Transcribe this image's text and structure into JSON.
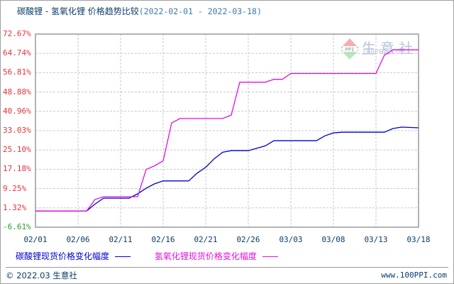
{
  "title": {
    "main": "碳酸锂 - 氢氧化锂 价格趋势比较",
    "range": "(2022-02-01 - 2022-03-18)"
  },
  "watermark": {
    "cn": "生意社",
    "en": "100PPI.COM",
    "logo": "PPI"
  },
  "legend": {
    "series1": "碳酸锂现货价格变化幅度",
    "series2": "氢氧化锂现货价格变化幅度"
  },
  "footer": {
    "left": "© 2022.03 生意社",
    "right": "www.100PPI.com"
  },
  "colors": {
    "series1": "#0000cc",
    "series2": "#e010e0",
    "ytick": "#e8323a",
    "ytick_neg": "#2aa02a",
    "grid": "#c8c8c8"
  },
  "chart_data": {
    "type": "line",
    "title": "碳酸锂 - 氢氧化锂 价格趋势比较(2022-02-01 - 2022-03-18)",
    "xlabel": "",
    "ylabel": "",
    "ylim": [
      -6.61,
      72.67
    ],
    "yticks": [
      "72.67%",
      "64.74%",
      "56.81%",
      "48.88%",
      "40.96%",
      "33.03%",
      "25.10%",
      "17.18%",
      "9.25%",
      "1.32%",
      "-6.61%"
    ],
    "xticks": [
      "02/01",
      "02/06",
      "02/11",
      "02/16",
      "02/21",
      "02/26",
      "03/03",
      "03/08",
      "03/13",
      "03/18"
    ],
    "grid": true,
    "legend_position": "bottom",
    "series": [
      {
        "name": "碳酸锂现货价格变化幅度",
        "color": "#0000cc",
        "x": [
          "02/01",
          "02/07",
          "02/08",
          "02/09",
          "02/12",
          "02/13",
          "02/14",
          "02/15",
          "02/16",
          "02/19",
          "02/20",
          "02/21",
          "02/22",
          "02/23",
          "02/24",
          "02/26",
          "02/28",
          "03/01",
          "03/02",
          "03/06",
          "03/07",
          "03/08",
          "03/09",
          "03/14",
          "03/15",
          "03/16",
          "03/18"
        ],
        "values": [
          0,
          0,
          2.9,
          5.3,
          5.3,
          7.1,
          9.4,
          11.2,
          12.4,
          12.4,
          15.6,
          18.0,
          21.5,
          24.2,
          24.8,
          24.8,
          26.8,
          28.9,
          28.9,
          28.9,
          30.9,
          32.1,
          32.4,
          32.4,
          33.9,
          34.5,
          34.2
        ],
        "unit": "%"
      },
      {
        "name": "氢氧化锂现货价格变化幅度",
        "color": "#e010e0",
        "x": [
          "02/01",
          "02/07",
          "02/08",
          "02/09",
          "02/13",
          "02/14",
          "02/15",
          "02/16",
          "02/17",
          "02/18",
          "02/23",
          "02/24",
          "02/25",
          "02/26",
          "02/28",
          "03/01",
          "03/02",
          "03/03",
          "03/13",
          "03/14",
          "03/15",
          "03/18"
        ],
        "values": [
          0,
          0,
          4.8,
          5.9,
          5.9,
          17.1,
          18.6,
          20.6,
          36.2,
          38.0,
          38.0,
          39.4,
          52.9,
          52.9,
          52.9,
          54.1,
          54.1,
          56.5,
          56.5,
          64.1,
          66.2,
          66.2
        ],
        "unit": "%"
      }
    ]
  }
}
